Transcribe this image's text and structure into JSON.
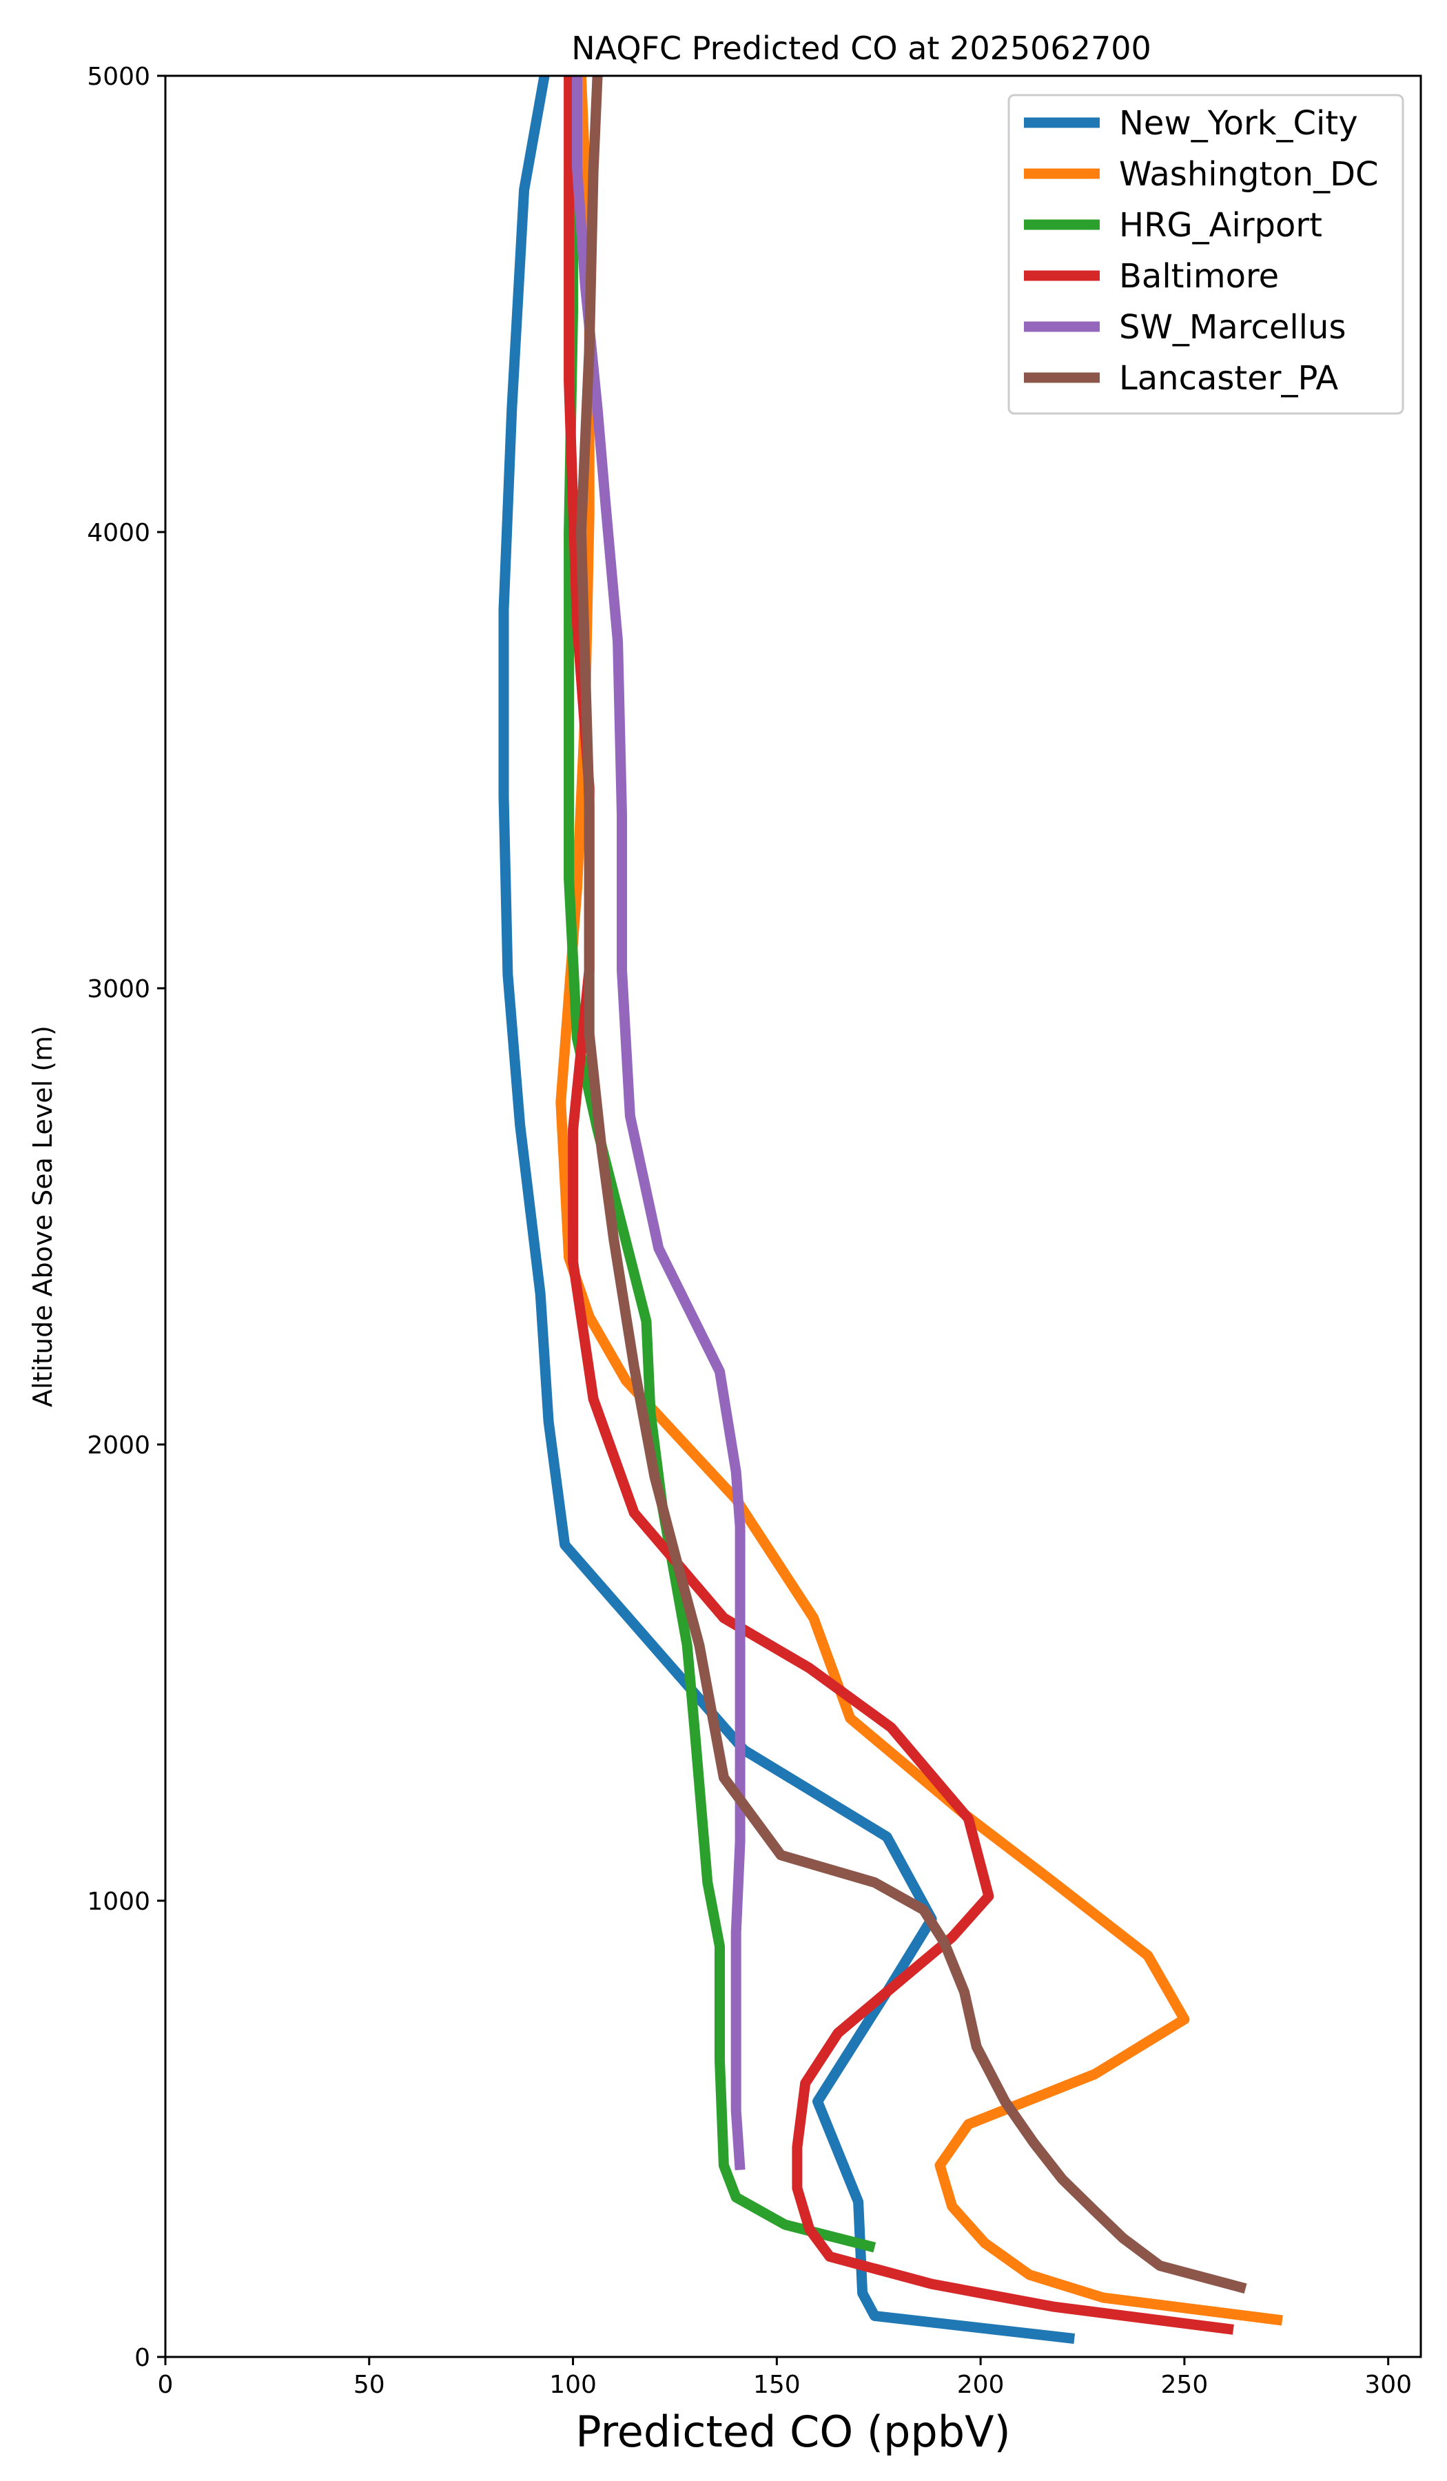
{
  "chart_data": {
    "type": "line",
    "title": "NAQFC Predicted CO at 2025062700",
    "xlabel": "Predicted CO (ppbV)",
    "ylabel": "Altitude Above Sea Level (m)",
    "xlim": [
      0,
      308
    ],
    "ylim": [
      0,
      5000
    ],
    "xticks": [
      0,
      50,
      100,
      150,
      200,
      250,
      300
    ],
    "yticks": [
      0,
      1000,
      2000,
      3000,
      4000,
      5000
    ],
    "grid": false,
    "legend_position": "top-right",
    "series": [
      {
        "name": "New_York_City",
        "color": "#1f77b4",
        "points": [
          [
            223,
            40
          ],
          [
            174,
            90
          ],
          [
            171,
            140
          ],
          [
            170,
            340
          ],
          [
            160,
            560
          ],
          [
            177,
            800
          ],
          [
            188,
            960
          ],
          [
            177,
            1140
          ],
          [
            142,
            1330
          ],
          [
            98,
            1780
          ],
          [
            94,
            2050
          ],
          [
            92,
            2330
          ],
          [
            87,
            2700
          ],
          [
            84,
            3030
          ],
          [
            83,
            3420
          ],
          [
            83,
            3830
          ],
          [
            85,
            4270
          ],
          [
            88,
            4750
          ],
          [
            93,
            5000
          ]
        ]
      },
      {
        "name": "Washington_DC",
        "color": "#ff7f0e",
        "points": [
          [
            274,
            80
          ],
          [
            230,
            130
          ],
          [
            212,
            180
          ],
          [
            201,
            250
          ],
          [
            193,
            330
          ],
          [
            190,
            420
          ],
          [
            197,
            510
          ],
          [
            228,
            620
          ],
          [
            250,
            740
          ],
          [
            241,
            880
          ],
          [
            218,
            1040
          ],
          [
            196,
            1190
          ],
          [
            168,
            1400
          ],
          [
            159,
            1620
          ],
          [
            140,
            1880
          ],
          [
            113,
            2140
          ],
          [
            104,
            2280
          ],
          [
            99,
            2410
          ],
          [
            97,
            2750
          ],
          [
            101,
            3220
          ],
          [
            103,
            3610
          ],
          [
            104,
            4040
          ],
          [
            104,
            4480
          ],
          [
            103,
            4790
          ],
          [
            102,
            5000
          ]
        ]
      },
      {
        "name": "HRG_Airport",
        "color": "#2ca02c",
        "points": [
          [
            174,
            240
          ],
          [
            152,
            290
          ],
          [
            140,
            350
          ],
          [
            137,
            420
          ],
          [
            136,
            650
          ],
          [
            136,
            900
          ],
          [
            133,
            1040
          ],
          [
            130,
            1360
          ],
          [
            128,
            1560
          ],
          [
            122,
            1860
          ],
          [
            119,
            2070
          ],
          [
            118,
            2270
          ],
          [
            106,
            2690
          ],
          [
            101,
            2890
          ],
          [
            99,
            3240
          ],
          [
            99,
            3620
          ],
          [
            99,
            4000
          ],
          [
            100,
            4490
          ],
          [
            100,
            5000
          ]
        ]
      },
      {
        "name": "Baltimore",
        "color": "#d62728",
        "points": [
          [
            262,
            60
          ],
          [
            218,
            110
          ],
          [
            188,
            160
          ],
          [
            163,
            220
          ],
          [
            158,
            280
          ],
          [
            155,
            370
          ],
          [
            155,
            460
          ],
          [
            157,
            600
          ],
          [
            165,
            710
          ],
          [
            181,
            830
          ],
          [
            193,
            920
          ],
          [
            202,
            1010
          ],
          [
            197,
            1180
          ],
          [
            178,
            1380
          ],
          [
            158,
            1510
          ],
          [
            137,
            1620
          ],
          [
            115,
            1850
          ],
          [
            105,
            2100
          ],
          [
            100,
            2400
          ],
          [
            100,
            2690
          ],
          [
            104,
            3040
          ],
          [
            104,
            3440
          ],
          [
            101,
            3800
          ],
          [
            99,
            4330
          ],
          [
            99,
            4850
          ],
          [
            99,
            5000
          ]
        ]
      },
      {
        "name": "SW_Marcellus",
        "color": "#9467bd",
        "points": [
          [
            141,
            410
          ],
          [
            140,
            540
          ],
          [
            140,
            720
          ],
          [
            140,
            930
          ],
          [
            141,
            1130
          ],
          [
            141,
            1360
          ],
          [
            141,
            1620
          ],
          [
            141,
            1820
          ],
          [
            140,
            1940
          ],
          [
            136,
            2160
          ],
          [
            121,
            2430
          ],
          [
            114,
            2720
          ],
          [
            112,
            3040
          ],
          [
            112,
            3380
          ],
          [
            111,
            3760
          ],
          [
            108,
            4060
          ],
          [
            106,
            4270
          ],
          [
            103,
            4540
          ],
          [
            101,
            4800
          ],
          [
            101,
            5000
          ]
        ]
      },
      {
        "name": "Lancaster_PA",
        "color": "#8c564b",
        "points": [
          [
            265,
            150
          ],
          [
            244,
            200
          ],
          [
            235,
            260
          ],
          [
            228,
            320
          ],
          [
            220,
            390
          ],
          [
            213,
            470
          ],
          [
            206,
            560
          ],
          [
            199,
            680
          ],
          [
            196,
            800
          ],
          [
            191,
            910
          ],
          [
            186,
            980
          ],
          [
            174,
            1040
          ],
          [
            151,
            1100
          ],
          [
            137,
            1270
          ],
          [
            131,
            1560
          ],
          [
            125,
            1760
          ],
          [
            120,
            1930
          ],
          [
            115,
            2170
          ],
          [
            110,
            2450
          ],
          [
            107,
            2650
          ],
          [
            104,
            2900
          ],
          [
            104,
            3400
          ],
          [
            102,
            4000
          ],
          [
            104,
            4400
          ],
          [
            105,
            4790
          ],
          [
            106,
            5000
          ]
        ]
      }
    ]
  }
}
